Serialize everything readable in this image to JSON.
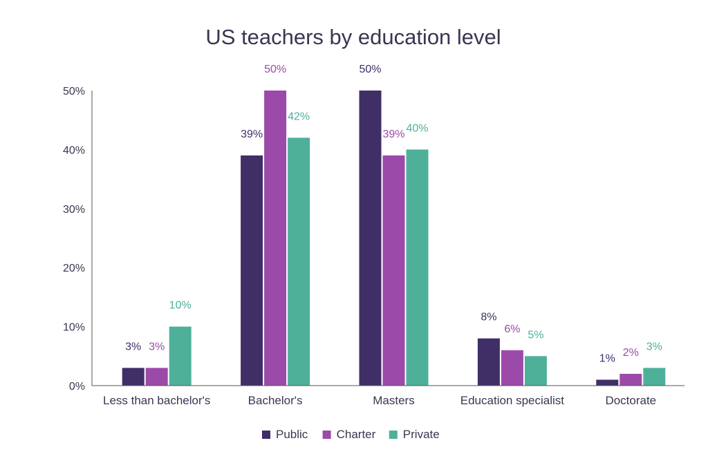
{
  "chart_data": {
    "type": "bar",
    "title": "US teachers by education level",
    "xlabel": "",
    "ylabel": "",
    "ylim": [
      0,
      50
    ],
    "yticks": [
      "0%",
      "10%",
      "20%",
      "30%",
      "40%",
      "50%"
    ],
    "ytick_values": [
      0,
      10,
      20,
      30,
      40,
      50
    ],
    "grid": false,
    "legend_position": "bottom-center",
    "categories": [
      "Less than bachelor's",
      "Bachelor's",
      "Masters",
      "Education specialist",
      "Doctorate"
    ],
    "series": [
      {
        "name": "Public",
        "color": "#402e67",
        "values": [
          3,
          39,
          50,
          8,
          1
        ],
        "labels": [
          "3%",
          "39%",
          "50%",
          "8%",
          "1%"
        ]
      },
      {
        "name": "Charter",
        "color": "#9c4aa9",
        "values": [
          3,
          50,
          39,
          6,
          2
        ],
        "labels": [
          "3%",
          "50%",
          "39%",
          "6%",
          "2%"
        ]
      },
      {
        "name": "Private",
        "color": "#4fb09a",
        "values": [
          10,
          42,
          40,
          5,
          3
        ],
        "labels": [
          "10%",
          "42%",
          "40%",
          "5%",
          "3%"
        ]
      }
    ]
  }
}
